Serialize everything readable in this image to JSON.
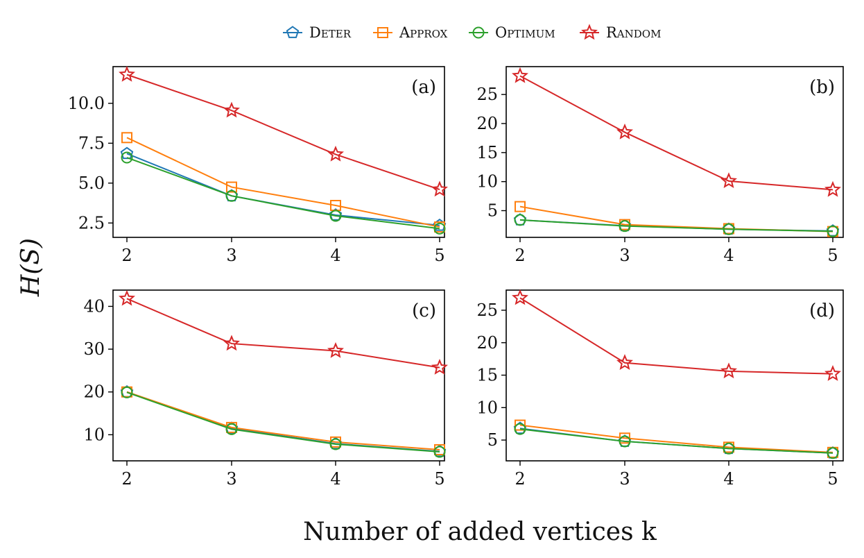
{
  "legend": [
    {
      "name": "Deter",
      "color": "#1f77b4",
      "marker": "pentagon"
    },
    {
      "name": "Approx",
      "color": "#ff7f0e",
      "marker": "square"
    },
    {
      "name": "Optimum",
      "color": "#2ca02c",
      "marker": "circle"
    },
    {
      "name": "Random",
      "color": "#d62728",
      "marker": "star"
    }
  ],
  "ylabel": "H(S)",
  "xlabel": "Number of added vertices k",
  "chart_data": [
    {
      "type": "line",
      "panel": "(a)",
      "x": [
        2,
        3,
        4,
        5
      ],
      "xticks": [
        2,
        3,
        4,
        5
      ],
      "ylim": [
        1.6,
        12.3
      ],
      "yticks": [
        2.5,
        5.0,
        7.5,
        10.0
      ],
      "ytick_labels": [
        "2.5",
        "5.0",
        "7.5",
        "10.0"
      ],
      "series": [
        {
          "name": "Deter",
          "values": [
            6.85,
            4.2,
            3.0,
            2.35
          ]
        },
        {
          "name": "Approx",
          "values": [
            7.85,
            4.75,
            3.6,
            2.25
          ]
        },
        {
          "name": "Optimum",
          "values": [
            6.6,
            4.2,
            2.95,
            2.15
          ]
        },
        {
          "name": "Random",
          "values": [
            11.8,
            9.55,
            6.8,
            4.6
          ]
        }
      ]
    },
    {
      "type": "line",
      "panel": "(b)",
      "x": [
        2,
        3,
        4,
        5
      ],
      "xticks": [
        2,
        3,
        4,
        5
      ],
      "ylim": [
        0.4,
        29.8
      ],
      "yticks": [
        5,
        10,
        15,
        20,
        25
      ],
      "ytick_labels": [
        "5",
        "10",
        "15",
        "20",
        "25"
      ],
      "series": [
        {
          "name": "Deter",
          "values": [
            3.4,
            2.4,
            1.8,
            1.5
          ]
        },
        {
          "name": "Approx",
          "values": [
            5.7,
            2.6,
            1.9,
            1.4
          ]
        },
        {
          "name": "Optimum",
          "values": [
            3.4,
            2.35,
            1.8,
            1.45
          ]
        },
        {
          "name": "Random",
          "values": [
            28.2,
            18.5,
            10.1,
            8.6
          ]
        }
      ]
    },
    {
      "type": "line",
      "panel": "(c)",
      "x": [
        2,
        3,
        4,
        5
      ],
      "xticks": [
        2,
        3,
        4,
        5
      ],
      "ylim": [
        3.9,
        43.8
      ],
      "yticks": [
        10,
        20,
        30,
        40
      ],
      "ytick_labels": [
        "10",
        "20",
        "30",
        "40"
      ],
      "series": [
        {
          "name": "Deter",
          "values": [
            20.0,
            11.5,
            7.9,
            6.1
          ]
        },
        {
          "name": "Approx",
          "values": [
            20.0,
            11.7,
            8.3,
            6.5
          ]
        },
        {
          "name": "Optimum",
          "values": [
            19.9,
            11.3,
            7.8,
            6.0
          ]
        },
        {
          "name": "Random",
          "values": [
            41.8,
            31.3,
            29.6,
            25.7
          ]
        }
      ]
    },
    {
      "type": "line",
      "panel": "(d)",
      "x": [
        2,
        3,
        4,
        5
      ],
      "xticks": [
        2,
        3,
        4,
        5
      ],
      "ylim": [
        1.8,
        28.1
      ],
      "yticks": [
        5,
        10,
        15,
        20,
        25
      ],
      "ytick_labels": [
        "5",
        "10",
        "15",
        "20",
        "25"
      ],
      "series": [
        {
          "name": "Deter",
          "values": [
            6.8,
            4.8,
            3.7,
            3.0
          ]
        },
        {
          "name": "Approx",
          "values": [
            7.3,
            5.3,
            3.9,
            3.1
          ]
        },
        {
          "name": "Optimum",
          "values": [
            6.7,
            4.8,
            3.7,
            3.0
          ]
        },
        {
          "name": "Random",
          "values": [
            26.9,
            16.9,
            15.6,
            15.2
          ]
        }
      ]
    }
  ]
}
